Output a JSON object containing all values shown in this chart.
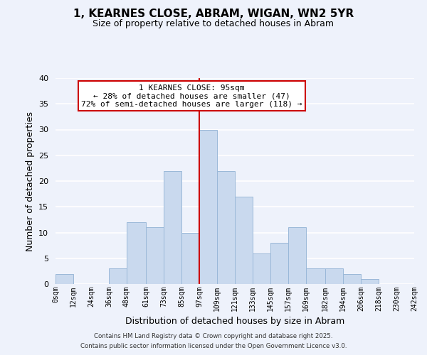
{
  "title": "1, KEARNES CLOSE, ABRAM, WIGAN, WN2 5YR",
  "subtitle": "Size of property relative to detached houses in Abram",
  "xlabel": "Distribution of detached houses by size in Abram",
  "ylabel": "Number of detached properties",
  "bar_color": "#c9d9ee",
  "bar_edge_color": "#9ab8d8",
  "background_color": "#eef2fb",
  "grid_color": "#ffffff",
  "vline_x": 97,
  "vline_color": "#cc0000",
  "bin_edges": [
    0,
    12,
    24,
    36,
    48,
    61,
    73,
    85,
    97,
    109,
    121,
    133,
    145,
    157,
    169,
    182,
    194,
    206,
    218,
    230,
    242
  ],
  "bin_labels": [
    "0sqm",
    "12sqm",
    "24sqm",
    "36sqm",
    "48sqm",
    "61sqm",
    "73sqm",
    "85sqm",
    "97sqm",
    "109sqm",
    "121sqm",
    "133sqm",
    "145sqm",
    "157sqm",
    "169sqm",
    "182sqm",
    "194sqm",
    "206sqm",
    "218sqm",
    "230sqm",
    "242sqm"
  ],
  "counts": [
    2,
    0,
    0,
    3,
    12,
    11,
    22,
    10,
    30,
    22,
    17,
    6,
    8,
    11,
    3,
    3,
    2,
    1,
    0,
    0
  ],
  "ylim": [
    0,
    40
  ],
  "yticks": [
    0,
    5,
    10,
    15,
    20,
    25,
    30,
    35,
    40
  ],
  "annotation_title": "1 KEARNES CLOSE: 95sqm",
  "annotation_line1": "← 28% of detached houses are smaller (47)",
  "annotation_line2": "72% of semi-detached houses are larger (118) →",
  "annotation_box_color": "#ffffff",
  "annotation_edge_color": "#cc0000",
  "footnote1": "Contains HM Land Registry data © Crown copyright and database right 2025.",
  "footnote2": "Contains public sector information licensed under the Open Government Licence v3.0."
}
